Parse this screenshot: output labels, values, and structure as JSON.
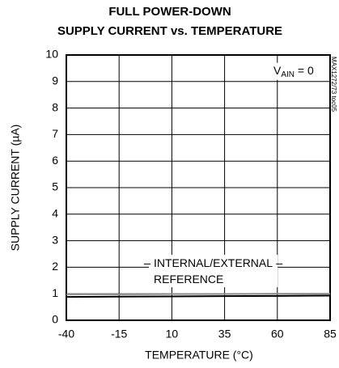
{
  "chart_data": {
    "type": "line",
    "title": [
      "FULL POWER-DOWN",
      "SUPPLY CURRENT vs. TEMPERATURE"
    ],
    "x_label": "TEMPERATURE (°C)",
    "y_label": "SUPPLY CURRENT (µA)",
    "annotation": {
      "base": "V",
      "sub": "AIN",
      "rest": " = 0"
    },
    "curve_label": [
      "INTERNAL/EXTERNAL",
      "REFERENCE"
    ],
    "figure_id": "MAX1272/73 toc05",
    "x": [
      -40,
      -15,
      10,
      35,
      60,
      85
    ],
    "series": [
      {
        "color": "#888888",
        "values": [
          0.98,
          0.98,
          0.99,
          0.99,
          1.0,
          1.0
        ]
      },
      {
        "color": "#000000",
        "values": [
          0.88,
          0.89,
          0.9,
          0.91,
          0.92,
          0.93
        ]
      }
    ],
    "xlim": [
      -40,
      85
    ],
    "xticks": [
      -40,
      -15,
      10,
      35,
      60,
      85
    ],
    "ylim": [
      0,
      10
    ],
    "yticks": [
      0,
      1,
      2,
      3,
      4,
      5,
      6,
      7,
      8,
      9,
      10
    ],
    "grid": true
  }
}
